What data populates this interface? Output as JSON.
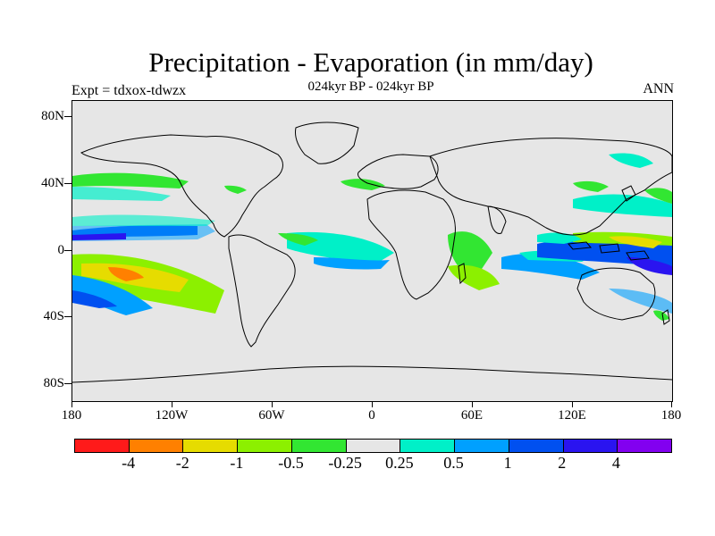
{
  "title": "Precipitation - Evaporation (in mm/day)",
  "subtitle": "024kyr BP - 024kyr BP",
  "left_string": "Expt = tdxox-tdwzx",
  "right_string": "ANN",
  "lat_labels": [
    "80N",
    "40N",
    "0",
    "40S",
    "80S"
  ],
  "lon_labels": [
    "180",
    "120W",
    "60W",
    "0",
    "60E",
    "120E",
    "180"
  ],
  "colorbar": {
    "colors": [
      "#ff1a1a",
      "#ff8000",
      "#e6dc00",
      "#8cf000",
      "#32e632",
      "#e6e6e6",
      "#00f0c8",
      "#00a0ff",
      "#0050f0",
      "#2a14f0",
      "#8200f0"
    ],
    "labels": [
      "-4",
      "-2",
      "-1",
      "-0.5",
      "-0.25",
      "0.25",
      "0.5",
      "1",
      "2",
      "4"
    ]
  },
  "map": {
    "ocean_color": "#e6e6e6",
    "coastline_color": "#000000",
    "projection": "cylindrical-equidistant",
    "lon_range": [
      -180,
      180
    ],
    "lat_range": [
      -90,
      90
    ]
  }
}
